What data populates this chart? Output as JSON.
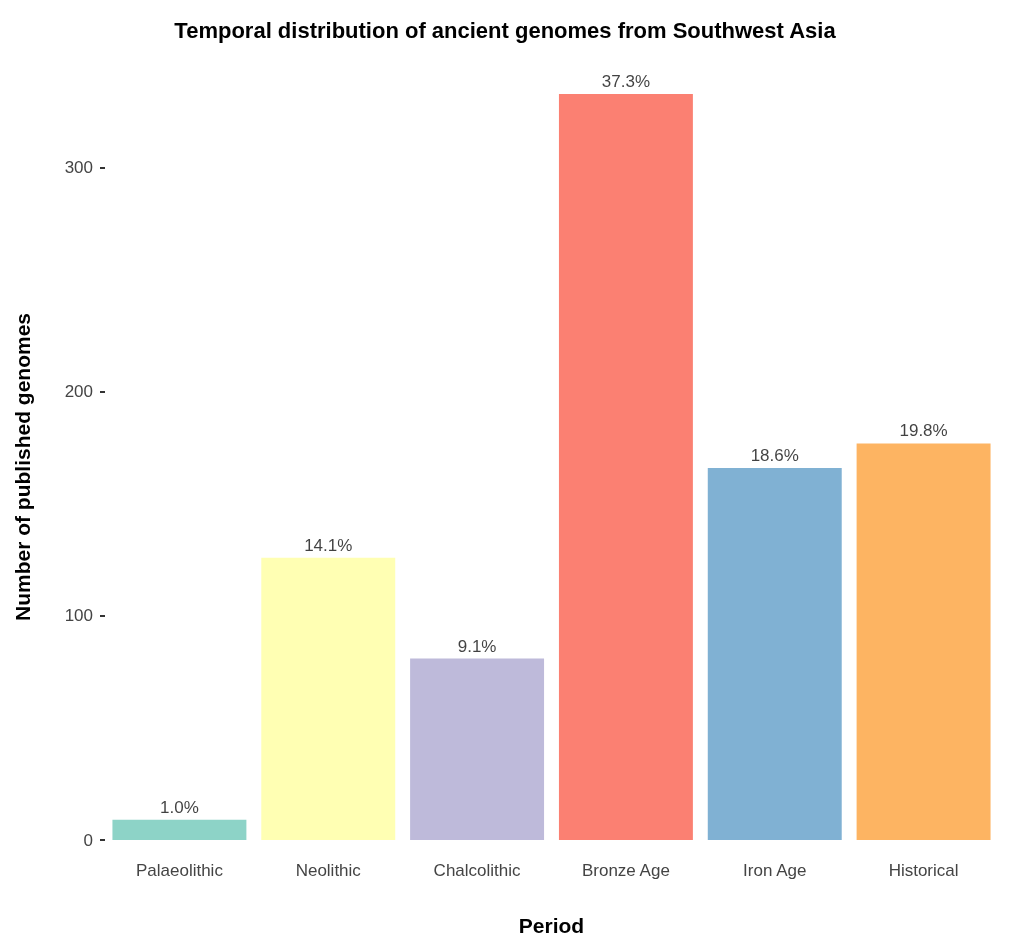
{
  "chart_data": {
    "type": "bar",
    "title": "Temporal distribution of ancient genomes from Southwest Asia",
    "xlabel": "Period",
    "ylabel": "Number of published genomes",
    "categories": [
      "Palaeolithic",
      "Neolithic",
      "Chalcolithic",
      "Bronze Age",
      "Iron Age",
      "Historical"
    ],
    "values": [
      9,
      126,
      81,
      333,
      166,
      177
    ],
    "colors": [
      "#8dd3c7",
      "#ffffb3",
      "#bebada",
      "#fb8072",
      "#80b1d3",
      "#fdb462"
    ],
    "annotations": [
      {
        "text": "1.0%",
        "x": "Palaeolithic",
        "y": 9
      },
      {
        "text": "14.1%",
        "x": "Neolithic",
        "y": 126
      },
      {
        "text": "9.1%",
        "x": "Chalcolithic",
        "y": 81
      },
      {
        "text": "37.3%",
        "x": "Bronze Age",
        "y": 333
      },
      {
        "text": "18.6%",
        "x": "Iron Age",
        "y": 166
      },
      {
        "text": "19.8%",
        "x": "Historical",
        "y": 177
      }
    ],
    "ylim": [
      0,
      333
    ],
    "yticks": [
      0,
      100,
      200,
      300
    ],
    "grid": false
  }
}
